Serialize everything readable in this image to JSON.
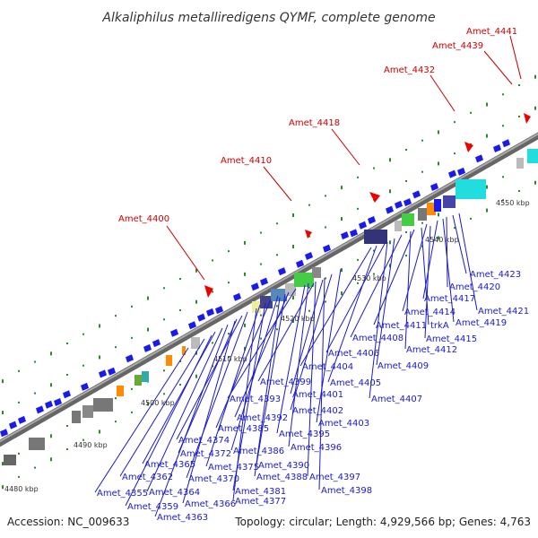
{
  "title": "Alkaliphilus metalliredigens QYMF, complete genome",
  "footer": {
    "accession": "Accession: NC_009633",
    "summary": "Topology: circular; Length: 4,929,566 bp; Genes: 4,763"
  },
  "colors": {
    "backbone": "#888888",
    "forward_gene": "#1a1aee",
    "red_label": "#cc0000",
    "blue_label": "#1a1acc",
    "tick_green": "#2a8a2a"
  },
  "kbp_labels": [
    "4480 kbp",
    "4490 kbp",
    "4500 kbp",
    "4510 kbp",
    "4520 kbp",
    "4530 kbp",
    "4540 kbp",
    "4550 kbp"
  ],
  "red_labels": [
    "Amet_4400",
    "Amet_4410",
    "Amet_4418",
    "Amet_4432",
    "Amet_4439",
    "Amet_4441"
  ],
  "blue_labels": [
    "Amet_4423",
    "Amet_4420",
    "Amet_4421",
    "Amet_4417",
    "Amet_4414",
    "Amet_4419",
    "Amet_4411",
    "trkA",
    "Amet_4415",
    "Amet_4408",
    "Amet_4412",
    "Amet_4406",
    "Amet_4409",
    "Amet_4404",
    "Amet_4399",
    "Amet_4405",
    "Amet_4401",
    "Amet_4407",
    "Amet_4393",
    "Amet_4402",
    "Amet_4392",
    "Amet_4403",
    "Amet_4385",
    "Amet_4395",
    "Amet_4374",
    "Amet_4396",
    "Amet_4386",
    "Amet_4372",
    "Amet_4390",
    "Amet_4365",
    "Amet_4375",
    "Amet_4388",
    "Amet_4397",
    "Amet_4362",
    "Amet_4370",
    "Amet_4398",
    "Amet_4381",
    "Amet_4364",
    "Amet_4355",
    "Amet_4377",
    "Amet_4366",
    "Amet_4359",
    "Amet_4363"
  ]
}
